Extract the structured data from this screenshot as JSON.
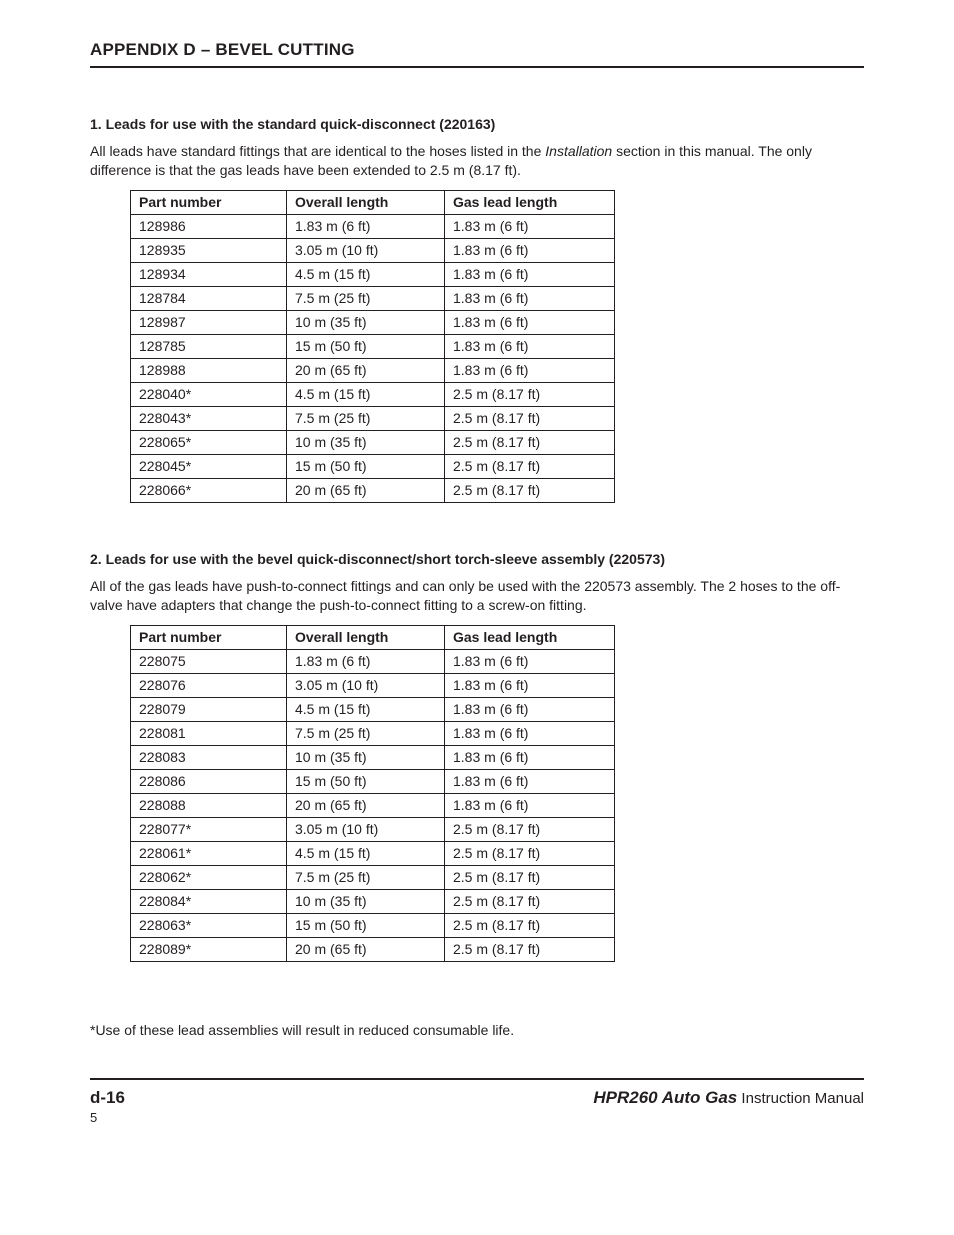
{
  "header": {
    "title": "APPENDIX D  – BEVEL CUTTING"
  },
  "section1": {
    "heading": "1.  Leads for use with the standard quick-disconnect (220163)",
    "body_pre": "All leads have standard fittings that are identical to the hoses listed in the ",
    "body_italic": "Installation",
    "body_post": " section in this manual. The only difference is that the gas leads have been extended to 2.5 m (8.17 ft).",
    "columns": [
      "Part number",
      "Overall length",
      "Gas lead length"
    ],
    "rows": [
      [
        "128986",
        "1.83 m (6 ft)",
        "1.83 m (6 ft)"
      ],
      [
        "128935",
        "3.05 m (10 ft)",
        "1.83 m (6 ft)"
      ],
      [
        "128934",
        "4.5 m (15 ft)",
        "1.83 m (6 ft)"
      ],
      [
        "128784",
        "7.5 m (25 ft)",
        "1.83 m (6 ft)"
      ],
      [
        "128987",
        "10 m (35 ft)",
        "1.83 m (6 ft)"
      ],
      [
        "128785",
        "15 m (50 ft)",
        "1.83 m (6 ft)"
      ],
      [
        "128988",
        "20 m (65 ft)",
        "1.83 m (6 ft)"
      ],
      [
        "228040*",
        "4.5 m (15 ft)",
        "2.5 m (8.17 ft)"
      ],
      [
        "228043*",
        "7.5 m (25 ft)",
        "2.5 m (8.17 ft)"
      ],
      [
        "228065*",
        "10 m (35 ft)",
        "2.5 m (8.17 ft)"
      ],
      [
        "228045*",
        "15 m (50 ft)",
        "2.5 m (8.17 ft)"
      ],
      [
        "228066*",
        "20 m (65 ft)",
        "2.5 m (8.17 ft)"
      ]
    ]
  },
  "section2": {
    "heading": "2.  Leads for use with the bevel quick-disconnect/short torch-sleeve assembly (220573)",
    "body": "All of the gas leads have push-to-connect fittings and can only be used with the 220573 assembly. The 2 hoses to the off-valve have adapters that change the push-to-connect fitting to a screw-on fitting.",
    "columns": [
      "Part number",
      "Overall length",
      "Gas lead length"
    ],
    "rows": [
      [
        "228075",
        "1.83 m (6 ft)",
        "1.83 m (6 ft)"
      ],
      [
        "228076",
        "3.05 m (10 ft)",
        "1.83 m (6 ft)"
      ],
      [
        "228079",
        "4.5 m (15 ft)",
        "1.83 m (6 ft)"
      ],
      [
        "228081",
        "7.5 m (25 ft)",
        "1.83 m (6 ft)"
      ],
      [
        "228083",
        "10 m (35 ft)",
        "1.83 m (6 ft)"
      ],
      [
        "228086",
        "15 m (50 ft)",
        "1.83 m (6 ft)"
      ],
      [
        "228088",
        "20 m (65 ft)",
        "1.83 m (6 ft)"
      ],
      [
        "228077*",
        "3.05 m (10 ft)",
        "2.5 m (8.17 ft)"
      ],
      [
        "228061*",
        "4.5 m (15 ft)",
        "2.5 m (8.17 ft)"
      ],
      [
        "228062*",
        "7.5 m (25 ft)",
        "2.5 m (8.17 ft)"
      ],
      [
        "228084*",
        "10 m (35 ft)",
        "2.5 m (8.17 ft)"
      ],
      [
        "228063*",
        "15 m (50 ft)",
        "2.5 m (8.17 ft)"
      ],
      [
        "228089*",
        "20 m (65 ft)",
        "2.5 m (8.17 ft)"
      ]
    ]
  },
  "footnote": "*Use of these lead assemblies will result in reduced consumable life.",
  "footer": {
    "page": "d-16",
    "product": "HPR260 Auto Gas",
    "suffix": " Instruction Manual",
    "small": "5"
  }
}
